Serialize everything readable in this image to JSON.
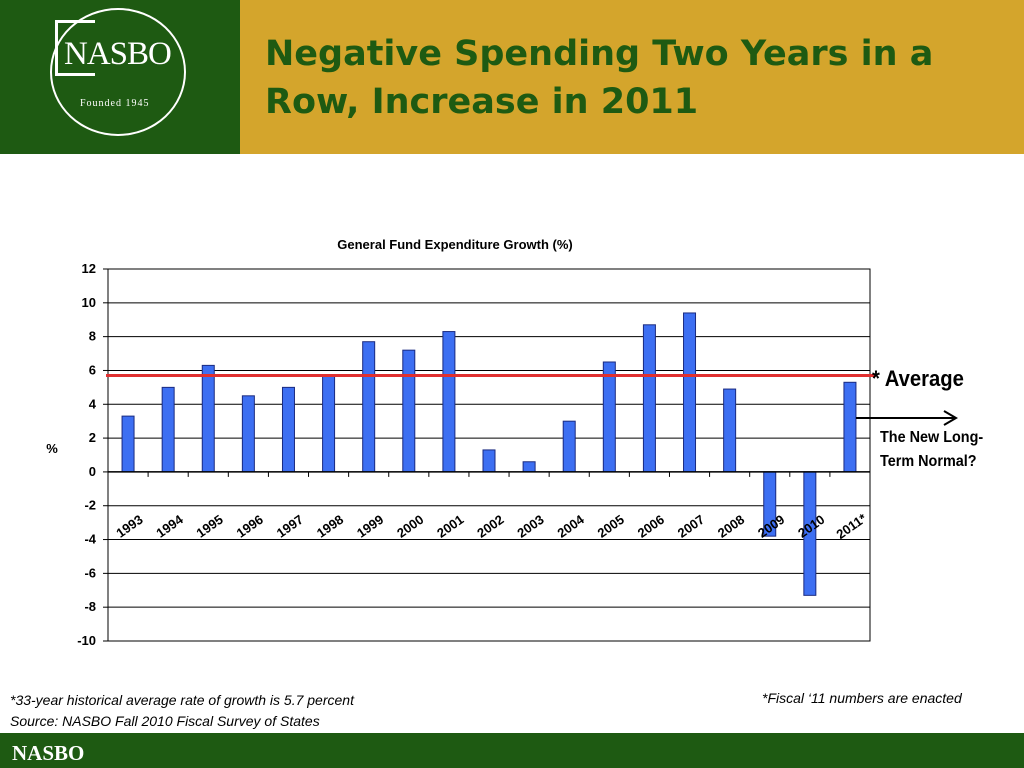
{
  "logo": {
    "name": "NASBO",
    "founded": "Founded 1945"
  },
  "slide": {
    "title": "Negative Spending Two Years in a Row, Increase in 2011"
  },
  "annotations": {
    "average": "* Average",
    "new_normal_line1": "The New Long-",
    "new_normal_line2": "Term Normal?"
  },
  "footnotes": {
    "average_note": "*33-year historical average rate of growth is 5.7 percent",
    "source": "Source: NASBO Fall 2010 Fiscal Survey of States",
    "fiscal_note": "*Fiscal ‘11 numbers are enacted"
  },
  "footer": {
    "label": "NASBO"
  },
  "colors": {
    "green": "#1e5a12",
    "gold": "#d4a52c",
    "bar": "#3d6ff2",
    "average_line": "#e03030"
  },
  "chart_data": {
    "type": "bar",
    "title": "General Fund Expenditure Growth (%)",
    "ylabel": "%",
    "xlabel": "",
    "ylim": [
      -10,
      12
    ],
    "yticks": [
      12,
      10,
      8,
      6,
      4,
      2,
      0,
      -2,
      -4,
      -6,
      -8,
      -10
    ],
    "grid": true,
    "categories": [
      "1993",
      "1994",
      "1995",
      "1996",
      "1997",
      "1998",
      "1999",
      "2000",
      "2001",
      "2002",
      "2003",
      "2004",
      "2005",
      "2006",
      "2007",
      "2008",
      "2009",
      "2010",
      "2011*"
    ],
    "values": [
      3.3,
      5.0,
      6.3,
      4.5,
      5.0,
      5.7,
      7.7,
      7.2,
      8.3,
      1.3,
      0.6,
      3.0,
      6.5,
      8.7,
      9.4,
      4.9,
      -3.8,
      -7.3,
      5.3
    ],
    "average": 5.7
  }
}
